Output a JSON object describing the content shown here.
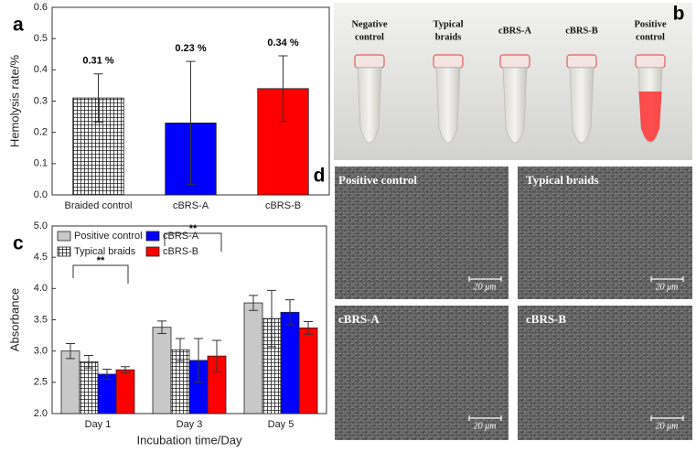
{
  "chart_data": [
    {
      "type": "bar",
      "panel_label": "a",
      "ylabel": "Hemolysis rate/%",
      "categories": [
        "Braided control",
        "cBRS-A",
        "cBRS-B"
      ],
      "values": [
        0.31,
        0.23,
        0.34
      ],
      "errors": [
        0.077,
        0.197,
        0.105
      ],
      "value_labels": [
        "0.31 %",
        "0.23 %",
        "0.34 %"
      ],
      "colors": [
        "#ffffff",
        "#0000ff",
        "#ff0000"
      ],
      "hatch": [
        true,
        false,
        false
      ],
      "ylim": [
        0,
        0.6
      ],
      "yticks": [
        {
          "value": 0,
          "label": "0.0"
        },
        0.1,
        0.2,
        0.3,
        0.4,
        0.5,
        0.6
      ]
    },
    {
      "type": "grouped_bar",
      "panel_label": "c",
      "xlabel": "Incubation time/Day",
      "ylabel": "Absorbance",
      "categories": [
        "Day 1",
        "Day 3",
        "Day 5"
      ],
      "series": [
        {
          "name": "Positive control",
          "color": "#c8c8c8",
          "values": [
            3.0,
            3.38,
            3.77
          ],
          "errors": [
            0.12,
            0.1,
            0.12
          ]
        },
        {
          "name": "Typical braids",
          "color": "#ffffff",
          "hatch": true,
          "values": [
            2.83,
            3.02,
            3.52
          ],
          "errors": [
            0.1,
            0.18,
            0.45
          ]
        },
        {
          "name": "cBRS-A",
          "color": "#0000ff",
          "values": [
            2.63,
            2.85,
            3.62
          ],
          "errors": [
            0.08,
            0.35,
            0.2
          ]
        },
        {
          "name": "cBRS-B",
          "color": "#ff0000",
          "values": [
            2.7,
            2.92,
            3.37
          ],
          "errors": [
            0.05,
            0.25,
            0.1
          ]
        }
      ],
      "annotations": [
        "**",
        "**"
      ],
      "legend": "top-left",
      "ylim": [
        2,
        5
      ],
      "yticks": [
        {
          "value": 2,
          "label": "2.0"
        },
        2.5,
        {
          "value": 3,
          "label": "3.0"
        },
        3.5,
        {
          "value": 4,
          "label": "4.0"
        },
        4.5,
        {
          "value": 5,
          "label": "5.0"
        }
      ]
    }
  ],
  "photo_b": {
    "panel_label": "b",
    "tube_labels": [
      [
        "Negative",
        "control"
      ],
      [
        "Typical",
        "braids"
      ],
      [
        "cBRS-A"
      ],
      [
        "cBRS-B"
      ],
      [
        "Positive",
        "control"
      ]
    ]
  },
  "photo_d": {
    "panel_label": "d",
    "image_labels": [
      "Positive control",
      "Typical braids",
      "cBRS-A",
      "cBRS-B"
    ],
    "scale_bar": "20 μm"
  }
}
